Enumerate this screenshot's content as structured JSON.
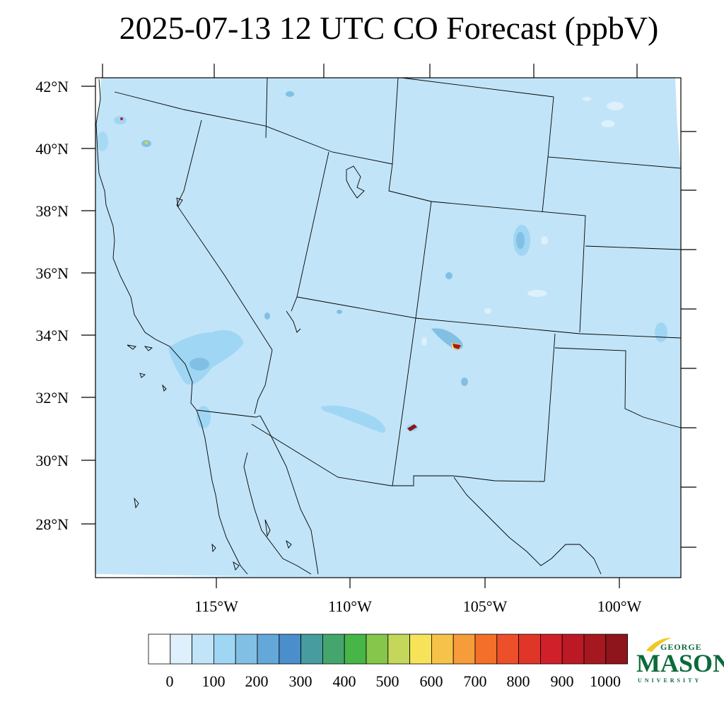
{
  "title": "2025-07-13 12 UTC CO Forecast (ppbV)",
  "map": {
    "background_color": "#c1e4f8",
    "lat_labels": [
      "42°N",
      "40°N",
      "38°N",
      "36°N",
      "34°N",
      "32°N",
      "30°N",
      "28°N"
    ],
    "lon_labels": [
      "115°W",
      "110°W",
      "105°W",
      "100°W"
    ]
  },
  "colorbar": {
    "colors": [
      "#ffffff",
      "#ddf0fb",
      "#c1e4f8",
      "#9fd6f3",
      "#82bfe4",
      "#64a8da",
      "#4a8ecc",
      "#469c9e",
      "#44a66d",
      "#47b548",
      "#86c64b",
      "#c4d75a",
      "#f6e35a",
      "#f7c24a",
      "#f69c3b",
      "#f36f2a",
      "#ec4f29",
      "#df3628",
      "#d0202a",
      "#bb1a25",
      "#a5181f",
      "#8d151b"
    ],
    "tick_labels": [
      "0",
      "100",
      "200",
      "300",
      "400",
      "500",
      "600",
      "700",
      "800",
      "900",
      "1000"
    ]
  },
  "logo": {
    "line1": "GEORGE",
    "line2": "MASON",
    "line3": "UNIVERSITY"
  }
}
